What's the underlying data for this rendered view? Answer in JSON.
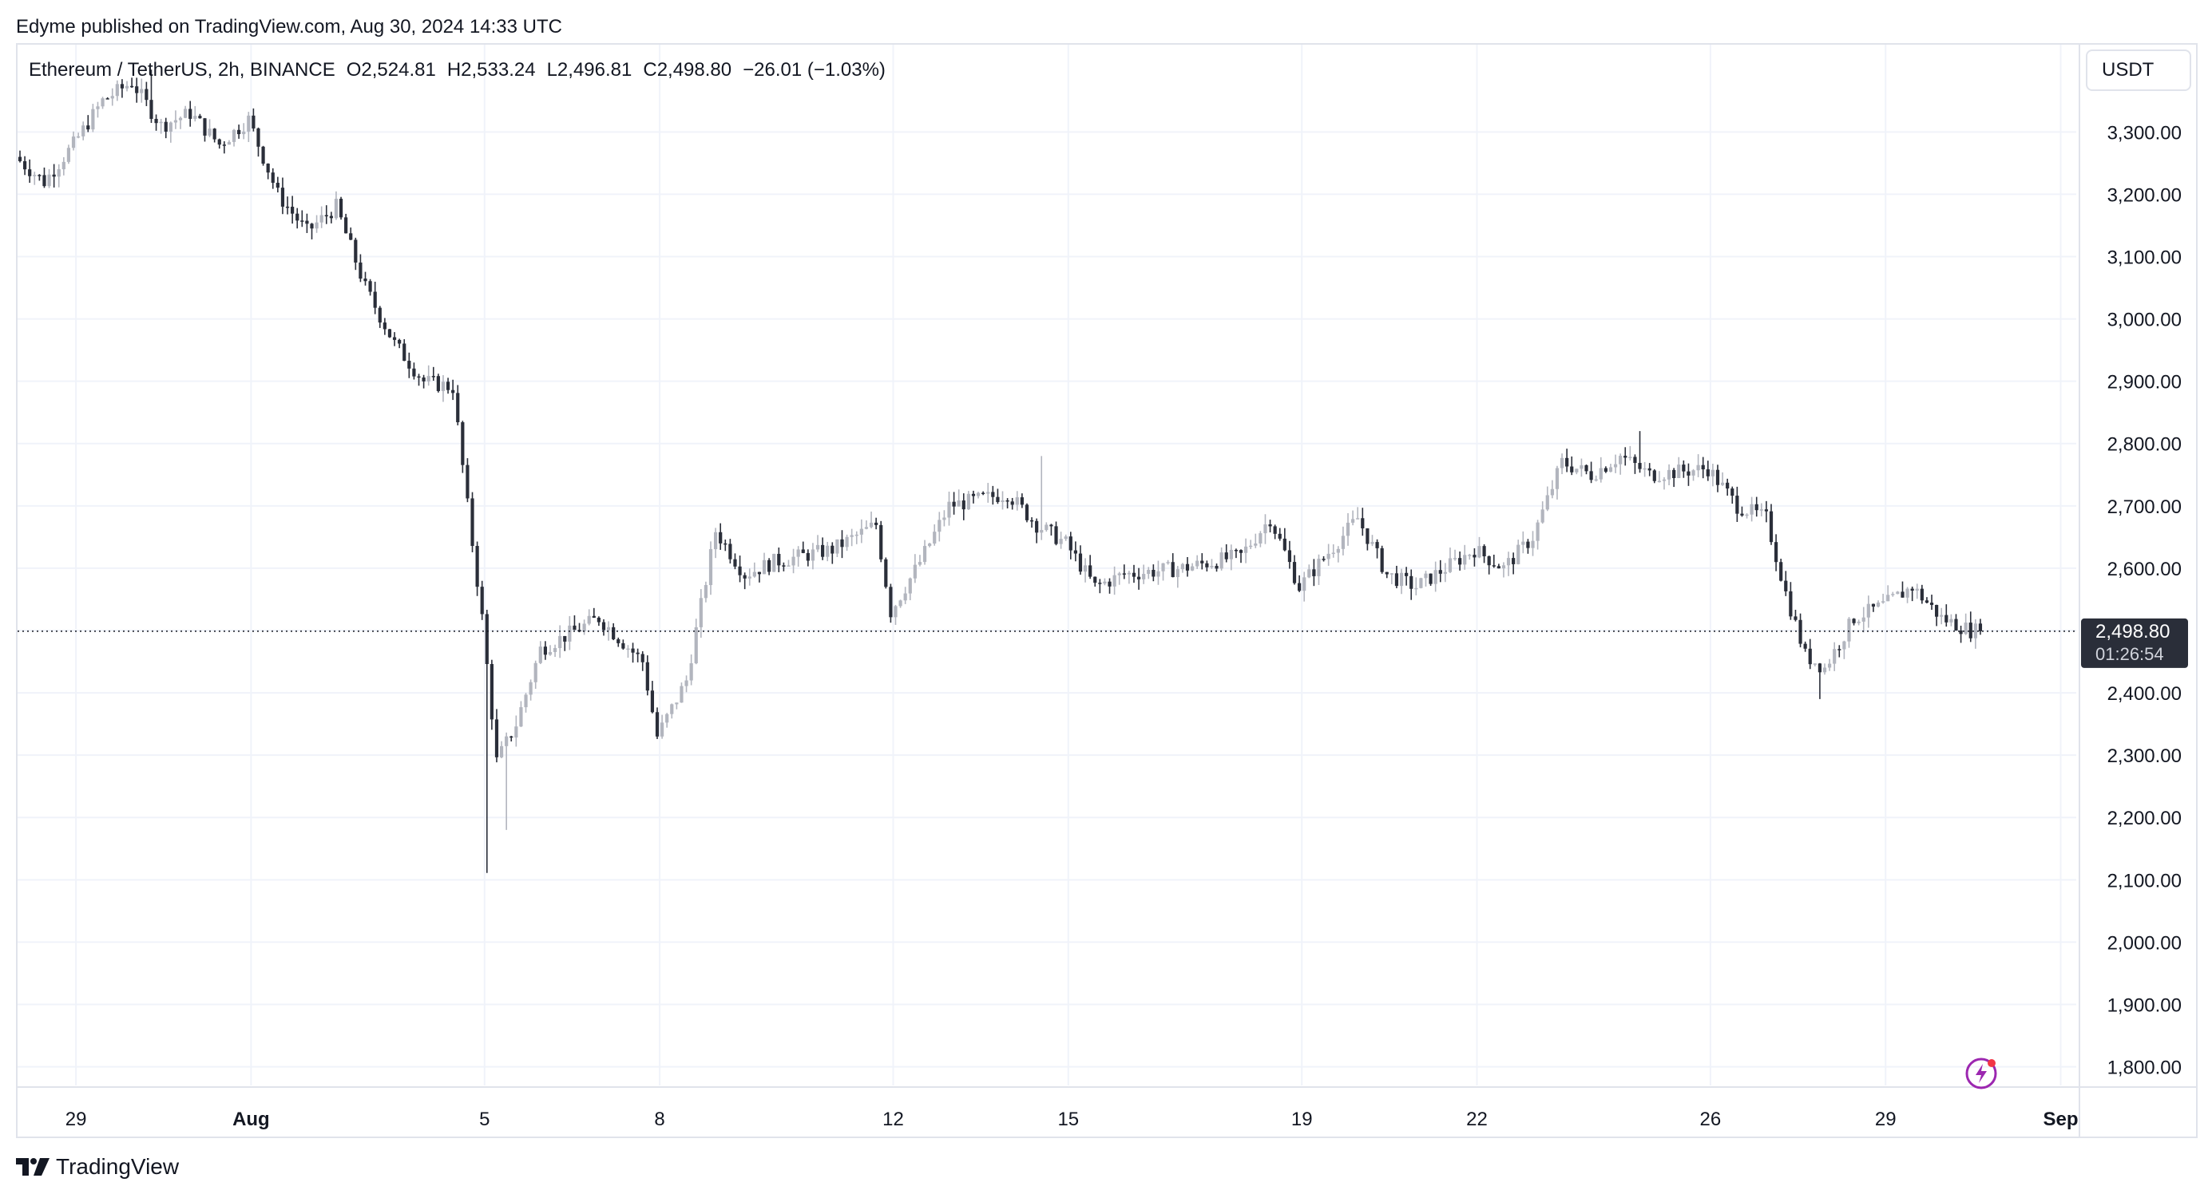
{
  "header": {
    "published": "Edyme published on TradingView.com, Aug 30, 2024 14:33 UTC"
  },
  "legend": {
    "symbol": "Ethereum / TetherUS, 2h, BINANCE",
    "open": "O2,524.81",
    "high": "H2,533.24",
    "low": "L2,496.81",
    "close": "C2,498.80",
    "change": "−26.01 (−1.03%)"
  },
  "currency_button": "USDT",
  "brand": {
    "name": "TradingView",
    "icon": "tradingview-logo-icon"
  },
  "icons": {
    "flash": "lightning-bolt-icon"
  },
  "colors": {
    "up_candle": "#b2b5be",
    "down_candle": "#2a2e39",
    "grid": "#f0f3fa",
    "price_label_bg": "#2a2e39",
    "flash_accent": "#9c27b0"
  },
  "chart_data": {
    "type": "candlestick",
    "symbol": "ETHUSDT",
    "interval": "2h",
    "y_unit": "USDT",
    "ylim": [
      1770,
      3440
    ],
    "y_ticks": [
      "3,300.00",
      "3,200.00",
      "3,100.00",
      "3,000.00",
      "2,900.00",
      "2,800.00",
      "2,700.00",
      "2,600.00",
      "2,500.00",
      "2,400.00",
      "2,300.00",
      "2,200.00",
      "2,100.00",
      "2,000.00",
      "1,900.00",
      "1,800.00"
    ],
    "x_ticks": [
      "29",
      "Aug",
      "5",
      "8",
      "12",
      "15",
      "19",
      "22",
      "26",
      "29",
      "Sep"
    ],
    "x_tick_dates": [
      "2024-07-29",
      "2024-08-01",
      "2024-08-05",
      "2024-08-08",
      "2024-08-12",
      "2024-08-15",
      "2024-08-19",
      "2024-08-22",
      "2024-08-26",
      "2024-08-29",
      "2024-09-01"
    ],
    "first_bar": "2024-07-28T00:00",
    "bars_per_day": 12,
    "grid": true,
    "last_price_label": "2,498.80",
    "countdown_label": "01:26:54",
    "current_price": 2498.8,
    "path_points": [
      [
        "2024-07-28",
        3260
      ],
      [
        "2024-07-28T12:00",
        3220
      ],
      [
        "2024-07-29",
        3280
      ],
      [
        "2024-07-29T12:00",
        3350
      ],
      [
        "2024-07-30",
        3380
      ],
      [
        "2024-07-30T12:00",
        3310
      ],
      [
        "2024-07-31",
        3330
      ],
      [
        "2024-07-31T12:00",
        3280
      ],
      [
        "2024-08-01",
        3320
      ],
      [
        "2024-08-01T12:00",
        3200
      ],
      [
        "2024-08-02",
        3140
      ],
      [
        "2024-08-02T12:00",
        3180
      ],
      [
        "2024-08-03",
        3050
      ],
      [
        "2024-08-03T12:00",
        2960
      ],
      [
        "2024-08-04",
        2900
      ],
      [
        "2024-08-04T12:00",
        2890
      ],
      [
        "2024-08-04T18:00",
        2700
      ],
      [
        "2024-08-05",
        2520
      ],
      [
        "2024-08-05T06:00",
        2290
      ],
      [
        "2024-08-05T14:00",
        2350
      ],
      [
        "2024-08-06",
        2470
      ],
      [
        "2024-08-07",
        2520
      ],
      [
        "2024-08-07T18:00",
        2450
      ],
      [
        "2024-08-08",
        2330
      ],
      [
        "2024-08-08T12:00",
        2420
      ],
      [
        "2024-08-09",
        2660
      ],
      [
        "2024-08-09T12:00",
        2590
      ],
      [
        "2024-08-10",
        2610
      ],
      [
        "2024-08-11",
        2630
      ],
      [
        "2024-08-11T18:00",
        2670
      ],
      [
        "2024-08-12",
        2530
      ],
      [
        "2024-08-12T12:00",
        2610
      ],
      [
        "2024-08-13",
        2700
      ],
      [
        "2024-08-14",
        2720
      ],
      [
        "2024-08-14T12:00",
        2670
      ],
      [
        "2024-08-15",
        2640
      ],
      [
        "2024-08-15T12:00",
        2570
      ],
      [
        "2024-08-16",
        2590
      ],
      [
        "2024-08-17",
        2600
      ],
      [
        "2024-08-18",
        2620
      ],
      [
        "2024-08-18T12:00",
        2680
      ],
      [
        "2024-08-19",
        2570
      ],
      [
        "2024-08-20",
        2680
      ],
      [
        "2024-08-20T12:00",
        2590
      ],
      [
        "2024-08-21",
        2570
      ],
      [
        "2024-08-22",
        2630
      ],
      [
        "2024-08-22T12:00",
        2600
      ],
      [
        "2024-08-23",
        2650
      ],
      [
        "2024-08-23T12:00",
        2770
      ],
      [
        "2024-08-24",
        2750
      ],
      [
        "2024-08-24T12:00",
        2780
      ],
      [
        "2024-08-25",
        2750
      ],
      [
        "2024-08-26",
        2760
      ],
      [
        "2024-08-26T12:00",
        2700
      ],
      [
        "2024-08-27",
        2680
      ],
      [
        "2024-08-27T08:00",
        2560
      ],
      [
        "2024-08-27T16:00",
        2460
      ],
      [
        "2024-08-28",
        2440
      ],
      [
        "2024-08-28T12:00",
        2520
      ],
      [
        "2024-08-29",
        2540
      ],
      [
        "2024-08-29T12:00",
        2570
      ],
      [
        "2024-08-30",
        2520
      ],
      [
        "2024-08-30T12:00",
        2500
      ]
    ],
    "notable_wicks": [
      {
        "time": "2024-08-05T00:00",
        "low": 2111
      },
      {
        "time": "2024-08-05T08:00",
        "low": 2180
      },
      {
        "time": "2024-08-14T12:00",
        "high": 2780
      },
      {
        "time": "2024-08-24T18:00",
        "high": 2820
      },
      {
        "time": "2024-07-30T06:00",
        "high": 3400
      },
      {
        "time": "2024-08-27T20:00",
        "low": 2390
      }
    ]
  }
}
